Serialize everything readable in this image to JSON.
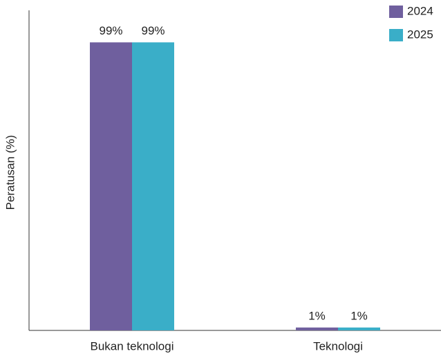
{
  "chart_data": {
    "type": "bar",
    "y_label": "Peratusan (%)",
    "categories": [
      "Bukan teknologi",
      "Teknologi"
    ],
    "series": [
      {
        "name": "2024",
        "color": "#6f5f9e",
        "values": [
          99,
          1
        ],
        "value_labels": [
          "99%",
          "1%"
        ]
      },
      {
        "name": "2025",
        "color": "#3aaec8",
        "values": [
          99,
          1
        ],
        "value_labels": [
          "99%",
          "1%"
        ]
      }
    ],
    "ylim": [
      0,
      110
    ],
    "grid": false,
    "legend": "top-right"
  }
}
